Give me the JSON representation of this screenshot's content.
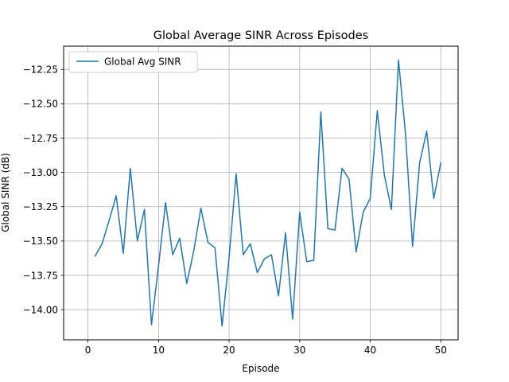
{
  "chart_data": {
    "type": "line",
    "title": "Global Average SINR Across Episodes",
    "xlabel": "Episode",
    "ylabel": "Global SINR (dB)",
    "xlim": [
      -3.45,
      52.45
    ],
    "ylim": [
      -14.22,
      -12.08
    ],
    "xticks": [
      0,
      10,
      20,
      30,
      40,
      50
    ],
    "yticks": [
      -14.0,
      -13.75,
      -13.5,
      -13.25,
      -13.0,
      -12.75,
      -12.5,
      -12.25
    ],
    "ytick_labels": [
      "−14.00",
      "−13.75",
      "−13.50",
      "−13.25",
      "−13.00",
      "−12.75",
      "−12.50",
      "−12.25"
    ],
    "xtick_labels": [
      "0",
      "10",
      "20",
      "30",
      "40",
      "50"
    ],
    "grid": true,
    "legend": "top-left",
    "series": [
      {
        "name": "Global Avg SINR",
        "color": "#1f77b4",
        "x": [
          1,
          2,
          3,
          4,
          5,
          6,
          7,
          8,
          9,
          10,
          11,
          12,
          13,
          14,
          15,
          16,
          17,
          18,
          19,
          20,
          21,
          22,
          23,
          24,
          25,
          26,
          27,
          28,
          29,
          30,
          31,
          32,
          33,
          34,
          35,
          36,
          37,
          38,
          39,
          40,
          41,
          42,
          43,
          44,
          45,
          46,
          47,
          48,
          49,
          50
        ],
        "y": [
          -13.61,
          -13.52,
          -13.35,
          -13.17,
          -13.59,
          -12.97,
          -13.5,
          -13.27,
          -14.11,
          -13.68,
          -13.22,
          -13.6,
          -13.48,
          -13.81,
          -13.57,
          -13.26,
          -13.51,
          -13.55,
          -14.12,
          -13.62,
          -13.01,
          -13.6,
          -13.52,
          -13.73,
          -13.63,
          -13.6,
          -13.9,
          -13.44,
          -14.07,
          -13.29,
          -13.65,
          -13.64,
          -12.56,
          -13.41,
          -13.42,
          -12.97,
          -13.05,
          -13.58,
          -13.29,
          -13.19,
          -12.55,
          -13.02,
          -13.27,
          -12.18,
          -12.72,
          -13.54,
          -12.93,
          -12.7,
          -13.19,
          -12.93
        ]
      }
    ]
  }
}
